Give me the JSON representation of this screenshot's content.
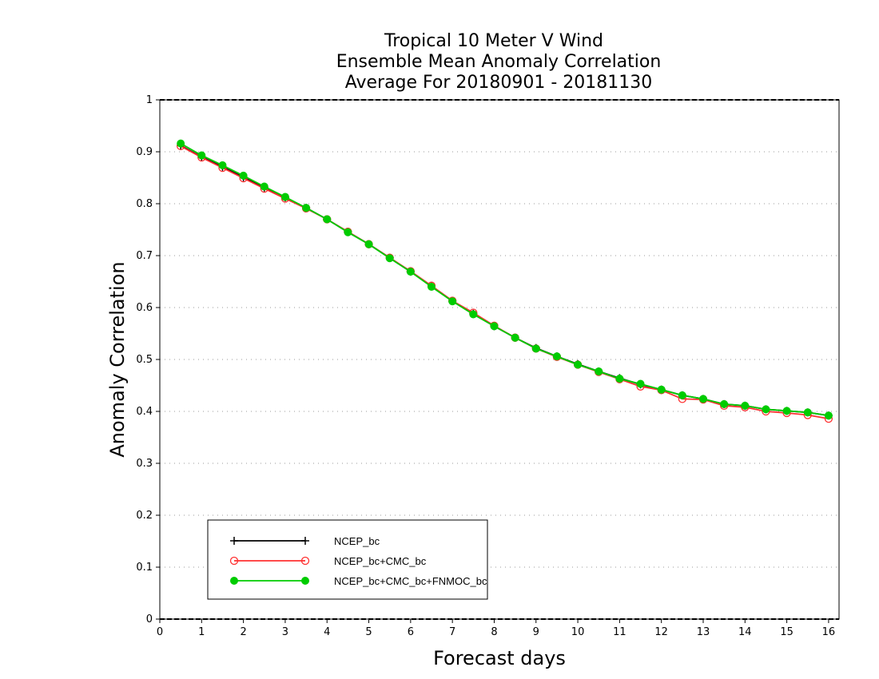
{
  "chart_data": {
    "type": "line",
    "title_lines": [
      "Tropical 10 Meter V Wind",
      "Ensemble Mean Anomaly Correlation",
      "Average For 20180901 - 20181130"
    ],
    "xlabel": "Forecast days",
    "ylabel": "Anomaly Correlation",
    "xlim": [
      0,
      16.25
    ],
    "ylim": [
      0,
      1
    ],
    "xticks": [
      0,
      1,
      2,
      3,
      4,
      5,
      6,
      7,
      8,
      9,
      10,
      11,
      12,
      13,
      14,
      15,
      16
    ],
    "yticks": [
      0,
      0.1,
      0.2,
      0.3,
      0.4,
      0.5,
      0.6,
      0.7,
      0.8,
      0.9,
      1
    ],
    "ytick_labels": [
      "0",
      "0.1",
      "0.2",
      "0.3",
      "0.4",
      "0.5",
      "0.6",
      "0.7",
      "0.8",
      "0.9",
      "1"
    ],
    "grid": "horizontal dotted",
    "legend_position": "bottom-left",
    "x": [
      0.5,
      1.0,
      1.5,
      2.0,
      2.5,
      3.0,
      3.5,
      4.0,
      4.5,
      5.0,
      5.5,
      6.0,
      6.5,
      7.0,
      7.5,
      8.0,
      8.5,
      9.0,
      9.5,
      10.0,
      10.5,
      11.0,
      11.5,
      12.0,
      12.5,
      13.0,
      13.5,
      14.0,
      14.5,
      15.0,
      15.5,
      16.0
    ],
    "series": [
      {
        "name": "NCEP_bc",
        "color": "#000000",
        "marker": "plus",
        "values": [
          0.912,
          0.89,
          0.871,
          0.851,
          0.831,
          0.812,
          0.792,
          0.77,
          0.746,
          0.722,
          0.696,
          0.669,
          0.641,
          0.613,
          0.588,
          0.564,
          0.542,
          0.522,
          0.506,
          0.491,
          0.477,
          0.464,
          0.452,
          0.442,
          0.431,
          0.424,
          0.414,
          0.411,
          0.404,
          0.401,
          0.398,
          0.392
        ]
      },
      {
        "name": "NCEP_bc+CMC_bc",
        "color": "#ff3030",
        "marker": "open-circle",
        "values": [
          0.911,
          0.889,
          0.869,
          0.849,
          0.829,
          0.81,
          0.791,
          0.77,
          0.746,
          0.722,
          0.696,
          0.67,
          0.642,
          0.613,
          0.59,
          0.565,
          0.542,
          0.521,
          0.505,
          0.49,
          0.476,
          0.462,
          0.448,
          0.441,
          0.424,
          0.423,
          0.411,
          0.408,
          0.4,
          0.397,
          0.393,
          0.386
        ]
      },
      {
        "name": "NCEP_bc+CMC_bc+FNMOC_bc",
        "color": "#00cc00",
        "marker": "filled-circle",
        "values": [
          0.916,
          0.893,
          0.874,
          0.854,
          0.833,
          0.813,
          0.792,
          0.77,
          0.745,
          0.722,
          0.695,
          0.669,
          0.64,
          0.612,
          0.587,
          0.564,
          0.542,
          0.521,
          0.506,
          0.49,
          0.477,
          0.463,
          0.453,
          0.442,
          0.431,
          0.424,
          0.414,
          0.411,
          0.404,
          0.401,
          0.398,
          0.392
        ]
      }
    ]
  }
}
